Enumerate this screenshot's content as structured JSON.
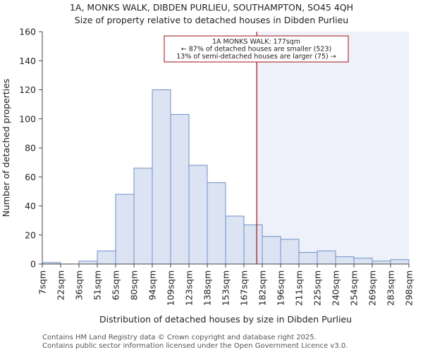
{
  "chart_data": {
    "type": "bar",
    "title_lines": [
      "1A, MONKS WALK, DIBDEN PURLIEU, SOUTHAMPTON, SO45 4QH",
      "Size of property relative to detached houses in Dibden Purlieu"
    ],
    "xlabel": "Distribution of detached houses by size in Dibden Purlieu",
    "ylabel": "Number of detached properties",
    "bin_labels": [
      "7sqm",
      "22sqm",
      "36sqm",
      "51sqm",
      "65sqm",
      "80sqm",
      "94sqm",
      "109sqm",
      "123sqm",
      "138sqm",
      "153sqm",
      "167sqm",
      "182sqm",
      "196sqm",
      "211sqm",
      "225sqm",
      "240sqm",
      "254sqm",
      "269sqm",
      "283sqm",
      "298sqm"
    ],
    "values": [
      1,
      0,
      2,
      9,
      48,
      66,
      120,
      103,
      68,
      56,
      33,
      27,
      19,
      17,
      8,
      9,
      5,
      4,
      2,
      3
    ],
    "ylim": [
      0,
      160
    ],
    "yticks": [
      0,
      20,
      40,
      60,
      80,
      100,
      120,
      140,
      160
    ],
    "marker": {
      "bin_position": 11.7,
      "annotation_lines": [
        "1A MONKS WALK: 177sqm",
        "← 87% of detached houses are smaller (523)",
        "13% of semi-detached houses are larger (75) →"
      ]
    },
    "colors": {
      "bar_fill": "#dce4f4",
      "bar_edge": "#6f8fc8",
      "highlight_fill": "#eef1fa",
      "marker": "#a01010",
      "axis": "#444444"
    }
  },
  "footer": {
    "line1": "Contains HM Land Registry data © Crown copyright and database right 2025.",
    "line2": "Contains public sector information licensed under the Open Government Licence v3.0."
  }
}
